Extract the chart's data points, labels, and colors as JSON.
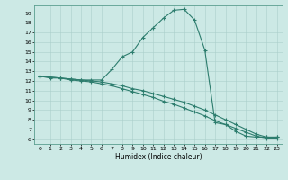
{
  "xlabel": "Humidex (Indice chaleur)",
  "bg_color": "#cce9e5",
  "line_color": "#2d7d6e",
  "grid_color": "#aacfcb",
  "xlim": [
    -0.5,
    23.5
  ],
  "ylim": [
    5.5,
    19.8
  ],
  "xticks": [
    0,
    1,
    2,
    3,
    4,
    5,
    6,
    7,
    8,
    9,
    10,
    11,
    12,
    13,
    14,
    15,
    16,
    17,
    18,
    19,
    20,
    21,
    22,
    23
  ],
  "yticks": [
    6,
    7,
    8,
    9,
    10,
    11,
    12,
    13,
    14,
    15,
    16,
    17,
    18,
    19
  ],
  "series": [
    {
      "x": [
        0,
        1,
        2,
        3,
        4,
        5,
        6,
        7,
        8,
        9,
        10,
        11,
        12,
        13,
        14,
        15,
        16,
        17,
        18,
        19,
        20,
        21,
        22,
        23
      ],
      "y": [
        12.5,
        12.3,
        12.3,
        12.2,
        12.1,
        12.1,
        12.1,
        13.2,
        14.5,
        15.0,
        16.5,
        17.5,
        18.5,
        19.3,
        19.4,
        18.3,
        15.2,
        7.7,
        7.5,
        6.8,
        6.3,
        6.2,
        6.2,
        6.2
      ]
    },
    {
      "x": [
        0,
        1,
        2,
        3,
        4,
        5,
        6,
        7,
        8,
        9,
        10,
        11,
        12,
        13,
        14,
        15,
        16,
        17,
        18,
        19,
        20,
        21,
        22,
        23
      ],
      "y": [
        12.5,
        12.4,
        12.3,
        12.2,
        12.1,
        12.0,
        11.9,
        11.7,
        11.5,
        11.2,
        11.0,
        10.7,
        10.4,
        10.1,
        9.8,
        9.4,
        9.0,
        8.5,
        8.0,
        7.5,
        7.0,
        6.5,
        6.2,
        6.2
      ]
    },
    {
      "x": [
        0,
        1,
        2,
        3,
        4,
        5,
        6,
        7,
        8,
        9,
        10,
        11,
        12,
        13,
        14,
        15,
        16,
        17,
        18,
        19,
        20,
        21,
        22,
        23
      ],
      "y": [
        12.5,
        12.4,
        12.3,
        12.1,
        12.0,
        11.9,
        11.7,
        11.5,
        11.2,
        10.9,
        10.6,
        10.3,
        9.9,
        9.6,
        9.2,
        8.8,
        8.4,
        7.9,
        7.5,
        7.1,
        6.7,
        6.3,
        6.1,
        6.1
      ]
    }
  ]
}
